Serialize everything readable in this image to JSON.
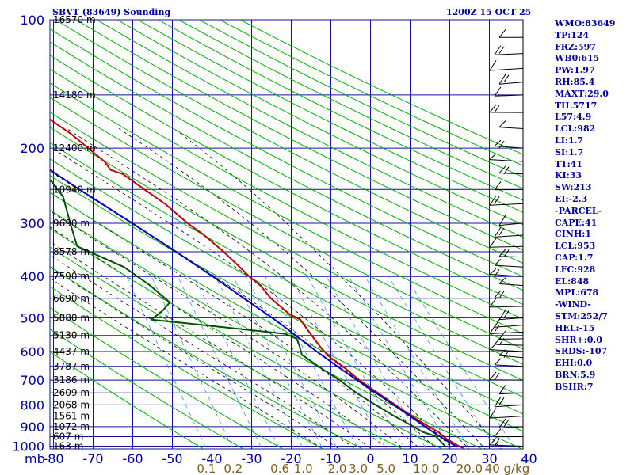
{
  "header": {
    "station": "SBVT (83649) Sounding",
    "time": "1200Z 15 OCT 25"
  },
  "indices": [
    "WMO:83649",
    "TP:124",
    "FRZ:597",
    "WB0:615",
    "PW:1.97",
    "RH:85.4",
    "MAXT:29.0",
    "TH:5717",
    "L57:4.9",
    "LCL:982",
    "LI:1.7",
    "SI:1.7",
    "TT:41",
    "KI:33",
    "SW:213",
    "EI:-2.3",
    "-PARCEL-",
    "CAPE:41",
    "CINH:1",
    "LCL:953",
    "CAP:1.7",
    "LFC:928",
    "EL:848",
    "MPL:678",
    "-WIND-",
    "STM:252/7",
    "HEL:-15",
    "SHR+:0.0",
    "SRDS:-107",
    "EHI:0.0",
    "BRN:5.9",
    "BSHR:7"
  ],
  "colors": {
    "grid": "#1010a0",
    "isotherm": "#1010a0",
    "dry_adiabat": "#00b000",
    "moist_adiabat": "#000000",
    "mixing_ratio": "#4090e0",
    "temperature": "#c00000",
    "dewpoint": "#005000",
    "parcel": "#0000c0",
    "axis_text": "#0000a0",
    "mixing_text": "#806020"
  },
  "chart_data": {
    "type": "line",
    "title": "SBVT (83649) Sounding",
    "xlabel": "",
    "ylabel": "mb",
    "x_ticks": [
      -80,
      -70,
      -60,
      -50,
      -40,
      -30,
      -20,
      -10,
      0,
      10,
      20,
      30,
      40
    ],
    "y_ticks": [
      100,
      200,
      300,
      400,
      500,
      600,
      700,
      800,
      900,
      1000
    ],
    "y_scale": "log",
    "ylim": [
      1015,
      100
    ],
    "xlim": [
      -80,
      40
    ],
    "height_labels": [
      {
        "p": 100,
        "label": "16570 m"
      },
      {
        "p": 150,
        "label": "14180 m"
      },
      {
        "p": 200,
        "label": "12400 m"
      },
      {
        "p": 250,
        "label": "10940 m"
      },
      {
        "p": 300,
        "label": "9690 m"
      },
      {
        "p": 350,
        "label": "8578 m"
      },
      {
        "p": 400,
        "label": "7590 m"
      },
      {
        "p": 450,
        "label": "6690 m"
      },
      {
        "p": 500,
        "label": "5880 m"
      },
      {
        "p": 550,
        "label": "5130 m"
      },
      {
        "p": 600,
        "label": "4437 m"
      },
      {
        "p": 650,
        "label": "3787 m"
      },
      {
        "p": 700,
        "label": "3186 m"
      },
      {
        "p": 750,
        "label": "2609 m"
      },
      {
        "p": 800,
        "label": "2068 m"
      },
      {
        "p": 850,
        "label": "1561 m"
      },
      {
        "p": 900,
        "label": "1072 m"
      },
      {
        "p": 950,
        "label": "607 m"
      },
      {
        "p": 1000,
        "label": "163 m"
      }
    ],
    "mixing_ratio_labels": [
      "0.1",
      "0.2",
      "0.6",
      "1.0",
      "2.0",
      "3.0",
      "5.0",
      "10.0",
      "20.0",
      "40 g/kg"
    ],
    "series": [
      {
        "key": "temperature",
        "points": [
          [
            1010,
            23.5
          ],
          [
            1000,
            22.5
          ],
          [
            960,
            19.8
          ],
          [
            925,
            18.2
          ],
          [
            900,
            16.2
          ],
          [
            850,
            12.6
          ],
          [
            800,
            9.2
          ],
          [
            750,
            5.6
          ],
          [
            700,
            1.8
          ],
          [
            650,
            -1.4
          ],
          [
            620,
            -4.0
          ],
          [
            590,
            -5.6
          ],
          [
            560,
            -6.8
          ],
          [
            530,
            -8.0
          ],
          [
            505,
            -9.0
          ],
          [
            490,
            -11.4
          ],
          [
            470,
            -13.2
          ],
          [
            450,
            -15.0
          ],
          [
            420,
            -16.8
          ],
          [
            400,
            -19.0
          ],
          [
            380,
            -20.8
          ],
          [
            350,
            -23.8
          ],
          [
            320,
            -27.6
          ],
          [
            300,
            -31.0
          ],
          [
            270,
            -35.4
          ],
          [
            250,
            -39.6
          ],
          [
            230,
            -44.0
          ],
          [
            225,
            -46.8
          ],
          [
            215,
            -47.8
          ],
          [
            200,
            -51.0
          ],
          [
            185,
            -54.4
          ],
          [
            165,
            -60.8
          ],
          [
            150,
            -65.0
          ],
          [
            140,
            -70.0
          ],
          [
            124,
            -74.0
          ],
          [
            100,
            -74.0
          ]
        ]
      },
      {
        "key": "dewpoint",
        "points": [
          [
            1000,
            19.0
          ],
          [
            950,
            17.4
          ],
          [
            925,
            14.2
          ],
          [
            900,
            12.4
          ],
          [
            850,
            8.2
          ],
          [
            800,
            4.2
          ],
          [
            750,
            0.2
          ],
          [
            700,
            -3.2
          ],
          [
            650,
            -7.6
          ],
          [
            610,
            -11.0
          ],
          [
            580,
            -11.0
          ],
          [
            560,
            -11.2
          ],
          [
            545,
            -13.8
          ],
          [
            515,
            -38.0
          ],
          [
            505,
            -46.6
          ],
          [
            480,
            -43.0
          ],
          [
            460,
            -40.8
          ],
          [
            420,
            -44.6
          ],
          [
            380,
            -50.0
          ],
          [
            340,
            -60.4
          ],
          [
            300,
            -60.6
          ],
          [
            260,
            -60.6
          ],
          [
            240,
            -62.4
          ],
          [
            225,
            -66.0
          ],
          [
            215,
            -65.0
          ],
          [
            205,
            -76.8
          ],
          [
            200,
            -74.4
          ],
          [
            185,
            -72.0
          ],
          [
            165,
            -75.8
          ],
          [
            150,
            -80.0
          ]
        ]
      },
      {
        "key": "parcel",
        "points": [
          [
            1005,
            22.0
          ],
          [
            980,
            20.4
          ],
          [
            953,
            18.6
          ],
          [
            928,
            17.0
          ],
          [
            900,
            15.3
          ],
          [
            850,
            12.2
          ],
          [
            800,
            8.8
          ],
          [
            750,
            5.1
          ],
          [
            700,
            1.2
          ],
          [
            650,
            -2.8
          ],
          [
            600,
            -7.0
          ],
          [
            560,
            -10.4
          ],
          [
            530,
            -13.0
          ],
          [
            500,
            -16.0
          ],
          [
            470,
            -19.4
          ],
          [
            450,
            -21.8
          ],
          [
            400,
            -28.2
          ],
          [
            350,
            -35.8
          ],
          [
            300,
            -45.0
          ],
          [
            250,
            -56.0
          ],
          [
            200,
            -69.0
          ],
          [
            165,
            -80.0
          ]
        ]
      }
    ]
  }
}
